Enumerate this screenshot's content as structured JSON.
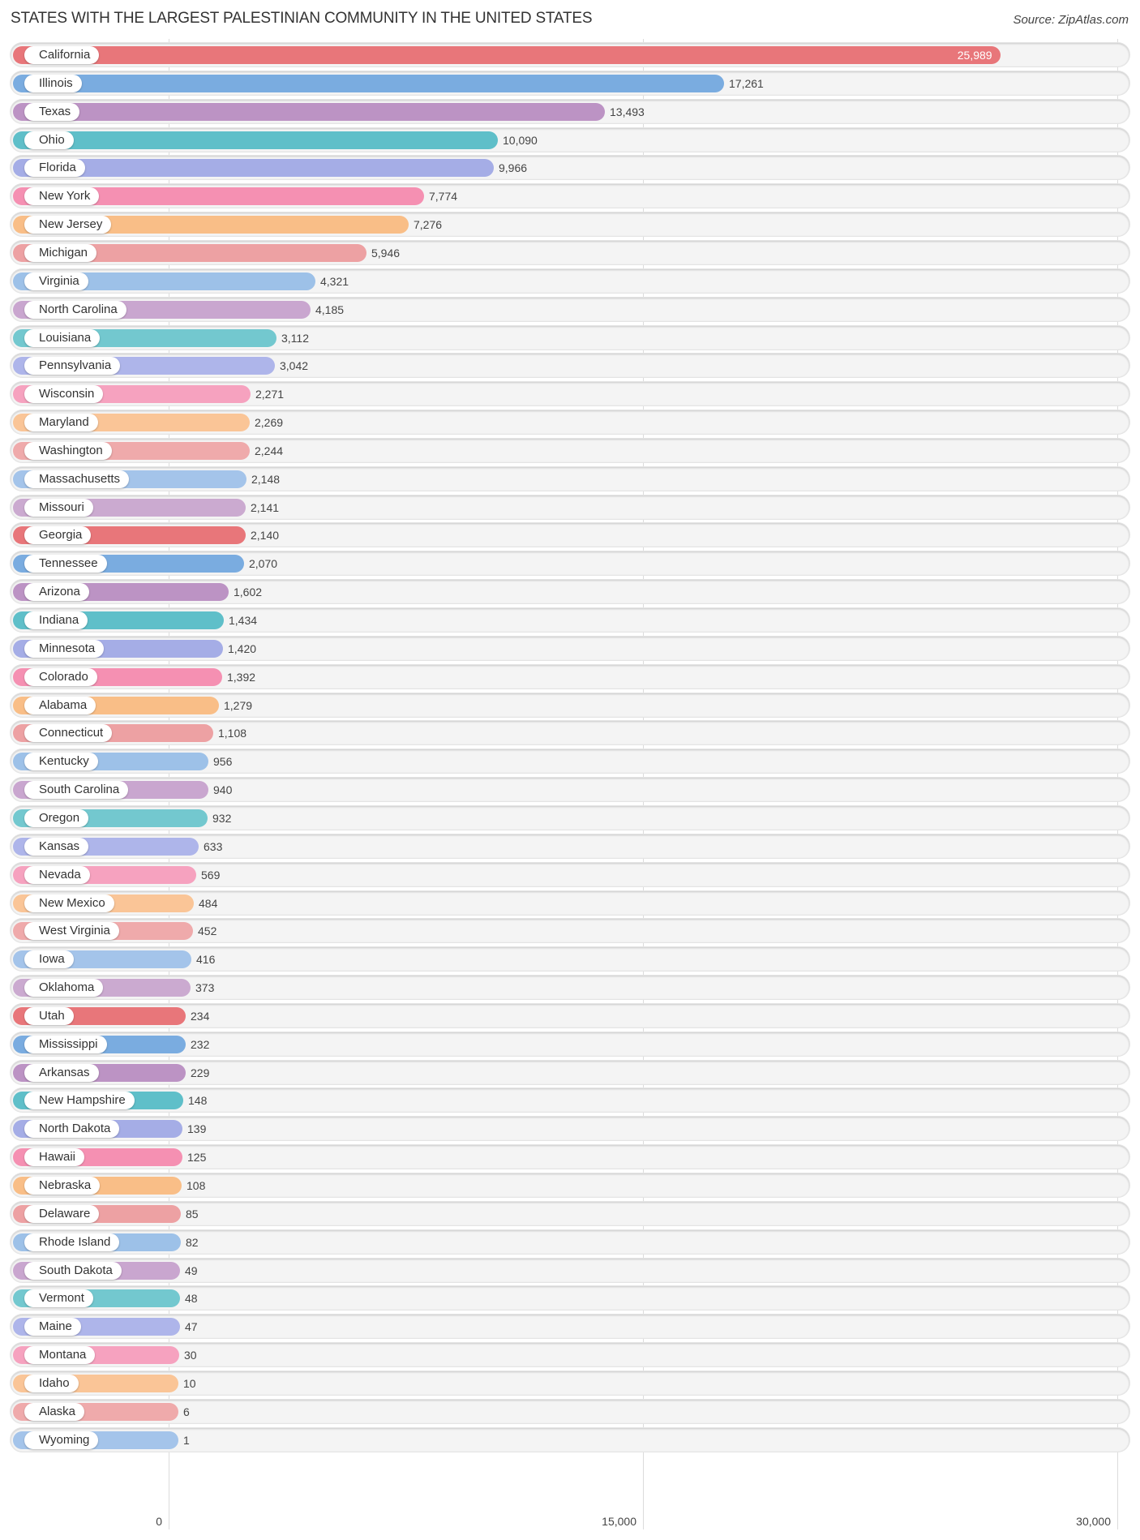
{
  "header": {
    "title": "STATES WITH THE LARGEST PALESTINIAN COMMUNITY IN THE UNITED STATES",
    "source": "Source: ZipAtlas.com"
  },
  "axis": {
    "ticks": [
      {
        "value": 0,
        "label": "0"
      },
      {
        "value": 15000,
        "label": "15,000"
      },
      {
        "value": 30000,
        "label": "30,000"
      }
    ]
  },
  "palette": [
    "#E8767A",
    "#7AACE0",
    "#BC93C4",
    "#5FBFC9",
    "#A5ADE6",
    "#F590B2",
    "#F9BE87",
    "#EDA1A3",
    "#9DC1E8",
    "#C9A6CF",
    "#73C8CF",
    "#AEB5EA",
    "#F6A2BF",
    "#FAC597",
    "#EFAAAB",
    "#A4C4EA",
    "#CBAAD0"
  ],
  "chart_data": {
    "type": "bar",
    "orientation": "horizontal",
    "title": "STATES WITH THE LARGEST PALESTINIAN COMMUNITY IN THE UNITED STATES",
    "source": "Source: ZipAtlas.com",
    "xlabel": "",
    "ylabel": "",
    "xlim": [
      0,
      30000
    ],
    "xticks": [
      0,
      15000,
      30000
    ],
    "grid": true,
    "legend": null,
    "categories": [
      "California",
      "Illinois",
      "Texas",
      "Ohio",
      "Florida",
      "New York",
      "New Jersey",
      "Michigan",
      "Virginia",
      "North Carolina",
      "Louisiana",
      "Pennsylvania",
      "Wisconsin",
      "Maryland",
      "Washington",
      "Massachusetts",
      "Missouri",
      "Georgia",
      "Tennessee",
      "Arizona",
      "Indiana",
      "Minnesota",
      "Colorado",
      "Alabama",
      "Connecticut",
      "Kentucky",
      "South Carolina",
      "Oregon",
      "Kansas",
      "Nevada",
      "New Mexico",
      "West Virginia",
      "Iowa",
      "Oklahoma",
      "Utah",
      "Mississippi",
      "Arkansas",
      "New Hampshire",
      "North Dakota",
      "Hawaii",
      "Nebraska",
      "Delaware",
      "Rhode Island",
      "South Dakota",
      "Vermont",
      "Maine",
      "Montana",
      "Idaho",
      "Alaska",
      "Wyoming"
    ],
    "values": [
      25989,
      17261,
      13493,
      10090,
      9966,
      7774,
      7276,
      5946,
      4321,
      4185,
      3112,
      3042,
      2271,
      2269,
      2244,
      2148,
      2141,
      2140,
      2070,
      1602,
      1434,
      1420,
      1392,
      1279,
      1108,
      956,
      940,
      932,
      633,
      569,
      484,
      452,
      416,
      373,
      234,
      232,
      229,
      148,
      139,
      125,
      108,
      85,
      82,
      49,
      48,
      47,
      30,
      10,
      6,
      1
    ],
    "value_labels": [
      "25,989",
      "17,261",
      "13,493",
      "10,090",
      "9,966",
      "7,774",
      "7,276",
      "5,946",
      "4,321",
      "4,185",
      "3,112",
      "3,042",
      "2,271",
      "2,269",
      "2,244",
      "2,148",
      "2,141",
      "2,140",
      "2,070",
      "1,602",
      "1,434",
      "1,420",
      "1,392",
      "1,279",
      "1,108",
      "956",
      "940",
      "932",
      "633",
      "569",
      "484",
      "452",
      "416",
      "373",
      "234",
      "232",
      "229",
      "148",
      "139",
      "125",
      "108",
      "85",
      "82",
      "49",
      "48",
      "47",
      "30",
      "10",
      "6",
      "1"
    ]
  }
}
